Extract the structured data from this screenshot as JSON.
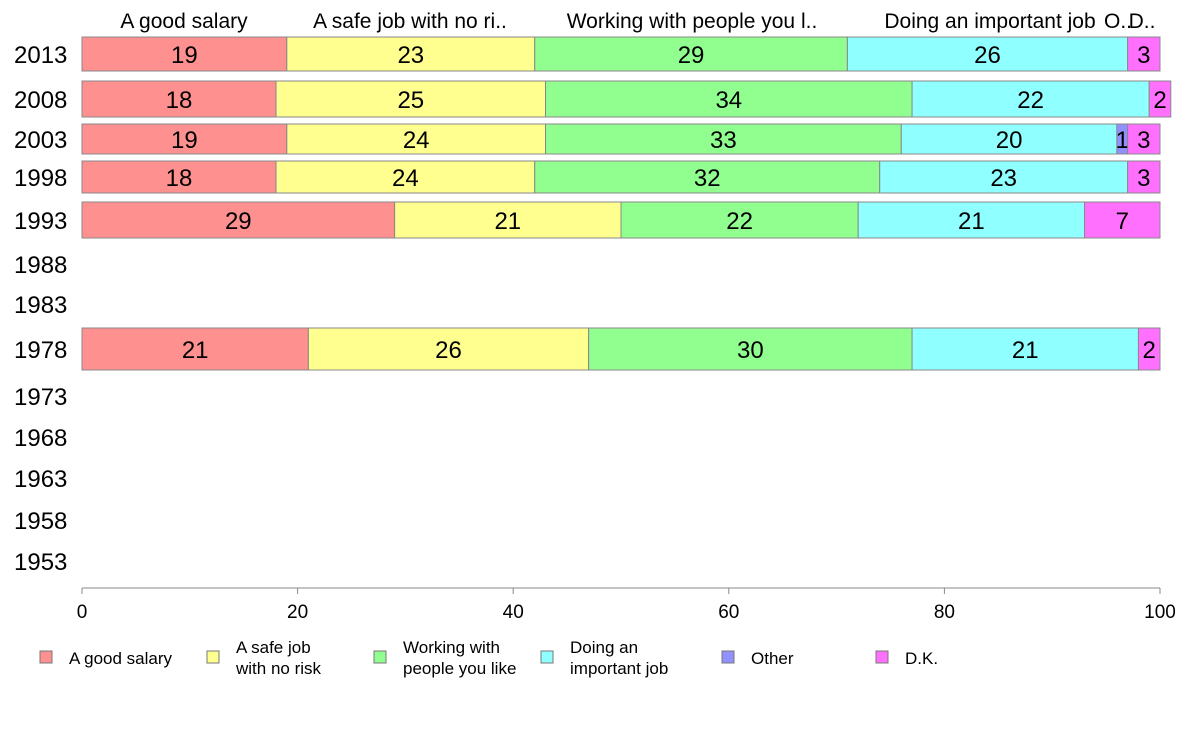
{
  "chart_data": {
    "type": "bar",
    "orientation": "horizontal",
    "stacked": true,
    "xlim": [
      0,
      100
    ],
    "xticks": [
      0,
      20,
      40,
      60,
      80,
      100
    ],
    "categories": [
      "2013",
      "2008",
      "2003",
      "1998",
      "1993",
      "1988",
      "1983",
      "1978",
      "1973",
      "1968",
      "1963",
      "1958",
      "1953"
    ],
    "top_labels": [
      "A good salary",
      "A safe job with no ri..",
      "Working with people you l..",
      "Doing an important job",
      "O..",
      "D.."
    ],
    "series": [
      {
        "name": "A good salary",
        "color": "#ff9090",
        "values": [
          19,
          18,
          19,
          18,
          29,
          null,
          null,
          21,
          null,
          null,
          null,
          null,
          null
        ]
      },
      {
        "name": "A safe job with no risk",
        "color": "#ffff90",
        "values": [
          23,
          25,
          24,
          24,
          21,
          null,
          null,
          26,
          null,
          null,
          null,
          null,
          null
        ]
      },
      {
        "name": "Working with people you like",
        "color": "#90ff90",
        "values": [
          29,
          34,
          33,
          32,
          22,
          null,
          null,
          30,
          null,
          null,
          null,
          null,
          null
        ]
      },
      {
        "name": "Doing an important job",
        "color": "#90ffff",
        "values": [
          26,
          22,
          20,
          23,
          21,
          null,
          null,
          21,
          null,
          null,
          null,
          null,
          null
        ]
      },
      {
        "name": "Other",
        "color": "#9090ff",
        "values": [
          0,
          0,
          1,
          0,
          0,
          null,
          null,
          0,
          null,
          null,
          null,
          null,
          null
        ]
      },
      {
        "name": "D.K.",
        "color": "#ff70ff",
        "values": [
          3,
          2,
          3,
          3,
          7,
          null,
          null,
          2,
          null,
          null,
          null,
          null,
          null
        ]
      }
    ],
    "legend": {
      "placement": "bottom",
      "entries": [
        [
          "A good salary"
        ],
        [
          "A safe job",
          "with no risk"
        ],
        [
          "Working with",
          "people you like"
        ],
        [
          "Doing an",
          "important job"
        ],
        [
          "Other"
        ],
        [
          "D.K."
        ]
      ]
    }
  }
}
